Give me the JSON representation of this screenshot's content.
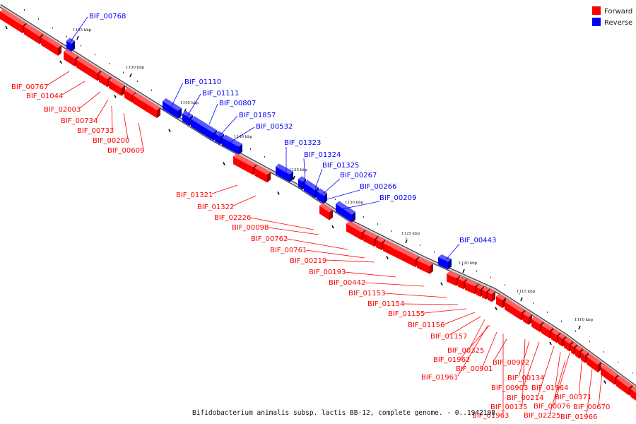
{
  "colors": {
    "forward": "#ff0000",
    "reverse": "#0000ff",
    "backbone": "#888888"
  },
  "legend": {
    "forward_label": "Forward",
    "reverse_label": "Reverse"
  },
  "caption": "Bifidobacterium animalis subsp. lactis BB-12, complete genome. - 0..1942198",
  "ticks": [
    "1155 kbp",
    "1150 kbp",
    "1145 kbp",
    "1140 kbp",
    "1135 kbp",
    "1130 kbp",
    "1125 kbp",
    "1120 kbp",
    "1115 kbp",
    "1110 kbp"
  ],
  "reverse_genes": [
    "BIF_00768",
    "BIF_01110",
    "BIF_01111",
    "BIF_00807",
    "BIF_01857",
    "BIF_00532",
    "BIF_01323",
    "BIF_01324",
    "BIF_01325",
    "BIF_00267",
    "BIF_00266",
    "BIF_00209",
    "BIF_00443"
  ],
  "forward_genes": [
    "BIF_00767",
    "BIF_01044",
    "BIF_02003",
    "BIF_00734",
    "BIF_00733",
    "BIF_00200",
    "BIF_00609",
    "BIF_01321",
    "BIF_01322",
    "BIF_02226",
    "BIF_00098",
    "BIF_00762",
    "BIF_00761",
    "BIF_00219",
    "BIF_00193",
    "BIF_00442",
    "BIF_01153",
    "BIF_01154",
    "BIF_01155",
    "BIF_01156",
    "BIF_01157",
    "BIF_00325",
    "BIF_01962",
    "BIF_00901",
    "BIF_01961",
    "BIF_00902",
    "BIF_00134",
    "BIF_00903",
    "BIF_01964",
    "BIF_00214",
    "BIF_00371",
    "BIF_00135",
    "BIF_00076",
    "BIF_00670",
    "BIF_01963",
    "BIF_02225",
    "BIF_01966"
  ]
}
